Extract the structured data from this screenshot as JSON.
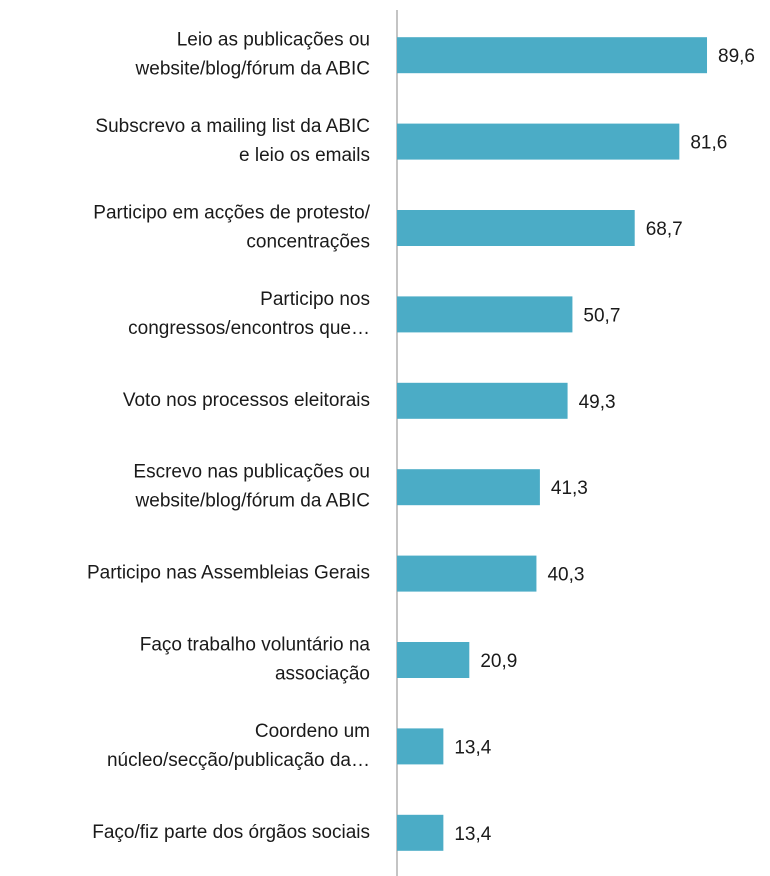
{
  "chart_data": {
    "type": "barh",
    "categories": [
      "Leio as publicações ou\nwebsite/blog/fórum da ABIC",
      "Subscrevo a mailing list da ABIC\ne leio os emails",
      "Participo em acções de protesto/\nconcentrações",
      "Participo nos\ncongressos/encontros que…",
      "Voto nos processos eleitorais",
      "Escrevo nas publicações ou\nwebsite/blog/fórum da ABIC",
      "Participo nas Assembleias Gerais",
      "Faço trabalho voluntário na\nassociação",
      "Coordeno um\nnúcleo/secção/publicação da…",
      "Faço/fiz parte dos órgãos sociais"
    ],
    "values": [
      89.6,
      81.6,
      68.7,
      50.7,
      49.3,
      41.3,
      40.3,
      20.9,
      13.4,
      13.4
    ],
    "value_labels": [
      "89,6",
      "81,6",
      "68,7",
      "50,7",
      "49,3",
      "41,3",
      "40,3",
      "20,9",
      "13,4",
      "13,4"
    ],
    "color": "#4bacc6",
    "xlim": [
      0,
      100
    ]
  }
}
